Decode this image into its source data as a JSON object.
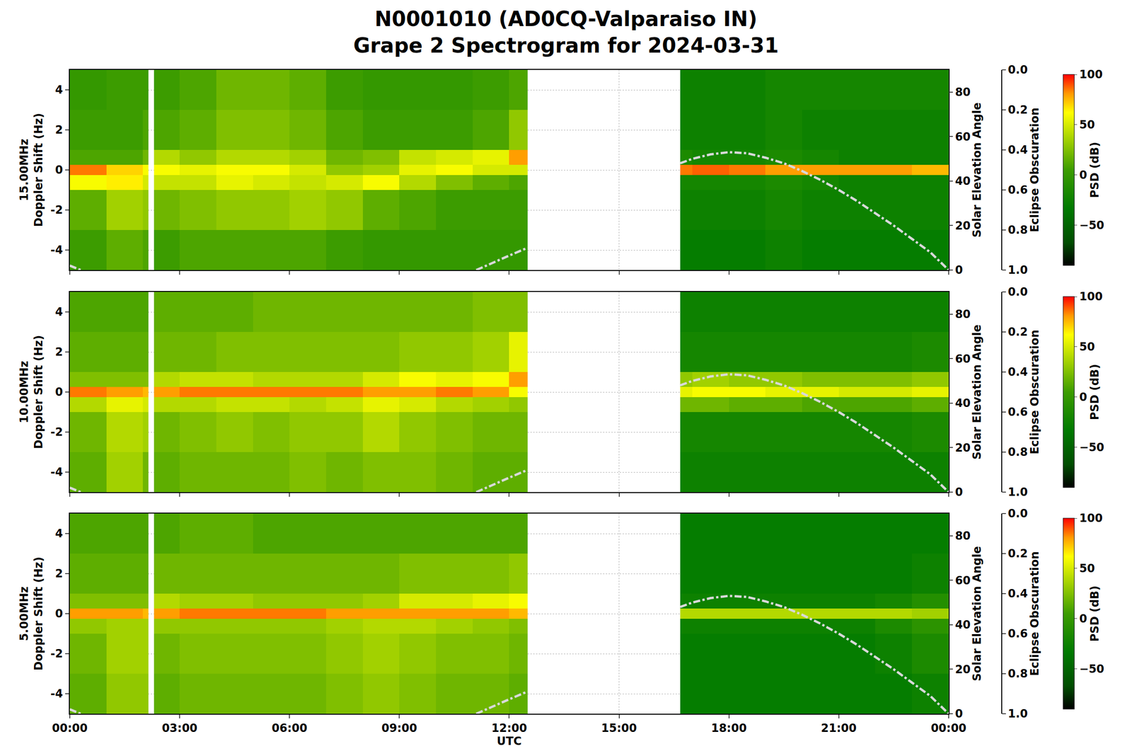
{
  "title": [
    "N0001010 (AD0CQ-Valparaiso IN)",
    "Grape 2 Spectrogram for 2024-03-31"
  ],
  "chart_data": [
    {
      "type": "heatmap",
      "ylabel": [
        "15.00MHz",
        "Doppler Shift (Hz)"
      ],
      "y2label": "Solar Elevation Angle",
      "y3label": "Eclipse Obscuration",
      "tick_labels": "y",
      "grid": true,
      "xlim": [
        0,
        24
      ],
      "xticks": [
        {
          "value": 0,
          "label": "00:00"
        },
        {
          "value": 3,
          "label": "03:00"
        },
        {
          "value": 6,
          "label": "06:00"
        },
        {
          "value": 9,
          "label": "09:00"
        },
        {
          "value": 12,
          "label": "12:00"
        },
        {
          "value": 15,
          "label": "15:00"
        },
        {
          "value": 18,
          "label": "18:00"
        },
        {
          "value": 21,
          "label": "21:00"
        },
        {
          "value": 24,
          "label": "00:00"
        }
      ],
      "ylim": [
        -5,
        5
      ],
      "yticks": [
        -4,
        -2,
        0,
        2,
        4
      ],
      "y2lim": [
        0,
        90
      ],
      "y2ticks": [
        0,
        20,
        40,
        60,
        80
      ],
      "y3lim": [
        1,
        0
      ],
      "y3ticks": [
        {
          "value": 0,
          "label": "0.0"
        },
        0.2,
        0.4,
        0.6,
        0.8,
        {
          "value": 1,
          "label": "1.0"
        }
      ],
      "x_edges": [
        0,
        1,
        2,
        2.15,
        2.3,
        3,
        4,
        5,
        6,
        7,
        8,
        9,
        10,
        11,
        12,
        12.5,
        16.67,
        17,
        18,
        19,
        20,
        21,
        22,
        23,
        24
      ],
      "y_edges": [
        -5,
        -3,
        -1,
        -0.25,
        0.25,
        1,
        3,
        5
      ],
      "z": [
        [
          5,
          15,
          10,
          null,
          5,
          10,
          10,
          10,
          10,
          5,
          0,
          0,
          0,
          0,
          0,
          null,
          -30,
          -30,
          -30,
          -25,
          -30,
          -30,
          -30,
          -30
        ],
        [
          15,
          35,
          30,
          null,
          20,
          25,
          30,
          30,
          35,
          30,
          15,
          10,
          5,
          5,
          5,
          null,
          -25,
          -25,
          -25,
          -20,
          -25,
          -25,
          -25,
          -25
        ],
        [
          60,
          65,
          50,
          null,
          45,
          45,
          55,
          50,
          45,
          50,
          60,
          40,
          25,
          15,
          10,
          null,
          -20,
          -20,
          -20,
          -15,
          -20,
          -25,
          -25,
          -25
        ],
        [
          85,
          70,
          60,
          null,
          60,
          55,
          60,
          60,
          50,
          30,
          35,
          55,
          60,
          50,
          50,
          null,
          85,
          88,
          85,
          80,
          80,
          80,
          80,
          75
        ],
        [
          10,
          10,
          20,
          null,
          40,
          30,
          40,
          40,
          35,
          20,
          25,
          45,
          50,
          55,
          80,
          null,
          -15,
          -20,
          -20,
          -15,
          -20,
          -25,
          -25,
          -25
        ],
        [
          5,
          5,
          10,
          null,
          10,
          15,
          25,
          25,
          20,
          10,
          5,
          5,
          5,
          10,
          30,
          null,
          -25,
          -25,
          -25,
          -20,
          -25,
          -25,
          -25,
          -25
        ],
        [
          0,
          5,
          5,
          null,
          5,
          10,
          20,
          20,
          15,
          5,
          0,
          0,
          0,
          5,
          10,
          null,
          -25,
          -25,
          -25,
          -20,
          -20,
          -20,
          -20,
          -20
        ]
      ],
      "colorbar": {
        "title": "PSD (dB)",
        "range": [
          -90,
          100
        ],
        "ticks": [
          -50,
          0,
          50,
          100
        ]
      },
      "elevation": {
        "color": "#d9d9d9",
        "line_style": "dashdot",
        "x": [
          0,
          0.3,
          5,
          11.1,
          11.5,
          12,
          12.5,
          14.5,
          16.67,
          17,
          17.5,
          18,
          18.5,
          19,
          19.5,
          20,
          20.5,
          21,
          21.5,
          22,
          22.5,
          23,
          23.5,
          24
        ],
        "values": [
          2,
          0,
          null,
          0,
          3,
          6.5,
          10,
          null,
          48,
          50,
          52,
          53,
          52.5,
          50.5,
          48,
          44.5,
          40.5,
          36,
          31,
          25.5,
          20,
          14,
          8,
          0
        ]
      }
    },
    {
      "type": "heatmap",
      "ylabel": [
        "10.00MHz",
        "Doppler Shift (Hz)"
      ],
      "y2label": "Solar Elevation Angle",
      "y3label": "Eclipse Obscuration",
      "tick_labels": "y",
      "grid": true,
      "xlim": [
        0,
        24
      ],
      "xticks": [
        {
          "value": 0,
          "label": "00:00"
        },
        {
          "value": 3,
          "label": "03:00"
        },
        {
          "value": 6,
          "label": "06:00"
        },
        {
          "value": 9,
          "label": "09:00"
        },
        {
          "value": 12,
          "label": "12:00"
        },
        {
          "value": 15,
          "label": "15:00"
        },
        {
          "value": 18,
          "label": "18:00"
        },
        {
          "value": 21,
          "label": "21:00"
        },
        {
          "value": 24,
          "label": "00:00"
        }
      ],
      "ylim": [
        -5,
        5
      ],
      "yticks": [
        -4,
        -2,
        0,
        2,
        4
      ],
      "y2lim": [
        0,
        90
      ],
      "y2ticks": [
        0,
        20,
        40,
        60,
        80
      ],
      "y3lim": [
        1,
        0
      ],
      "y3ticks": [
        {
          "value": 0,
          "label": "0.0"
        },
        0.2,
        0.4,
        0.6,
        0.8,
        {
          "value": 1,
          "label": "1.0"
        }
      ],
      "x_edges": [
        0,
        1,
        2,
        2.15,
        2.3,
        3,
        4,
        5,
        6,
        7,
        8,
        9,
        10,
        11,
        12,
        12.5,
        16.67,
        17,
        18,
        19,
        20,
        21,
        22,
        23,
        24
      ],
      "y_edges": [
        -5,
        -3,
        -1,
        -0.25,
        0.25,
        1,
        3,
        5
      ],
      "z": [
        [
          15,
          35,
          20,
          null,
          15,
          20,
          20,
          20,
          25,
          20,
          25,
          25,
          20,
          15,
          15,
          null,
          -25,
          -25,
          -25,
          -25,
          -25,
          -25,
          -25,
          -25
        ],
        [
          20,
          40,
          35,
          null,
          20,
          25,
          30,
          25,
          30,
          30,
          40,
          30,
          25,
          20,
          20,
          null,
          -20,
          -20,
          -20,
          -20,
          -20,
          -20,
          -20,
          -15
        ],
        [
          40,
          55,
          50,
          null,
          40,
          40,
          45,
          45,
          40,
          45,
          55,
          50,
          40,
          35,
          30,
          null,
          20,
          20,
          15,
          15,
          10,
          10,
          10,
          15
        ],
        [
          85,
          80,
          75,
          null,
          80,
          85,
          85,
          85,
          85,
          85,
          80,
          80,
          85,
          80,
          60,
          null,
          55,
          60,
          60,
          55,
          55,
          50,
          50,
          55
        ],
        [
          25,
          25,
          25,
          null,
          40,
          45,
          45,
          40,
          40,
          40,
          50,
          60,
          55,
          60,
          80,
          null,
          30,
          35,
          30,
          30,
          25,
          25,
          25,
          30
        ],
        [
          15,
          15,
          15,
          null,
          20,
          20,
          25,
          25,
          25,
          25,
          25,
          30,
          30,
          35,
          55,
          null,
          -20,
          -20,
          -20,
          -20,
          -20,
          -20,
          -20,
          -15
        ],
        [
          10,
          10,
          10,
          null,
          15,
          15,
          15,
          20,
          20,
          20,
          20,
          20,
          20,
          25,
          25,
          null,
          -25,
          -25,
          -25,
          -25,
          -25,
          -25,
          -25,
          -25
        ]
      ],
      "colorbar": {
        "title": "PSD (dB)",
        "range": [
          -90,
          100
        ],
        "ticks": [
          -50,
          0,
          50,
          100
        ]
      },
      "elevation": {
        "color": "#d9d9d9",
        "line_style": "dashdot",
        "x": [
          0,
          0.3,
          5,
          11.1,
          11.5,
          12,
          12.5,
          14.5,
          16.67,
          17,
          17.5,
          18,
          18.5,
          19,
          19.5,
          20,
          20.5,
          21,
          21.5,
          22,
          22.5,
          23,
          23.5,
          24
        ],
        "values": [
          2,
          0,
          null,
          0,
          3,
          6.5,
          10,
          null,
          48,
          50,
          52,
          53,
          52.5,
          50.5,
          48,
          44.5,
          40.5,
          36,
          31,
          25.5,
          20,
          14,
          8,
          0
        ]
      }
    },
    {
      "type": "heatmap",
      "ylabel": [
        "5.00MHz",
        "Doppler Shift (Hz)"
      ],
      "y2label": "Solar Elevation Angle",
      "y3label": "Eclipse Obscuration",
      "xlabel": "UTC",
      "grid": true,
      "xlim": [
        0,
        24
      ],
      "xticks": [
        {
          "value": 0,
          "label": "00:00"
        },
        {
          "value": 3,
          "label": "03:00"
        },
        {
          "value": 6,
          "label": "06:00"
        },
        {
          "value": 9,
          "label": "09:00"
        },
        {
          "value": 12,
          "label": "12:00"
        },
        {
          "value": 15,
          "label": "15:00"
        },
        {
          "value": 18,
          "label": "18:00"
        },
        {
          "value": 21,
          "label": "21:00"
        },
        {
          "value": 24,
          "label": "00:00"
        }
      ],
      "ylim": [
        -5,
        5
      ],
      "yticks": [
        -4,
        -2,
        0,
        2,
        4
      ],
      "y2lim": [
        0,
        90
      ],
      "y2ticks": [
        0,
        20,
        40,
        60,
        80
      ],
      "y3lim": [
        1,
        0
      ],
      "y3ticks": [
        {
          "value": 0,
          "label": "0.0"
        },
        0.2,
        0.4,
        0.6,
        0.8,
        {
          "value": 1,
          "label": "1.0"
        }
      ],
      "x_edges": [
        0,
        1,
        2,
        2.15,
        2.3,
        3,
        4,
        5,
        6,
        7,
        8,
        9,
        10,
        11,
        12,
        12.5,
        16.67,
        17,
        18,
        19,
        20,
        21,
        22,
        23,
        24
      ],
      "y_edges": [
        -5,
        -3,
        -1,
        -0.25,
        0.25,
        1,
        3,
        5
      ],
      "z": [
        [
          15,
          30,
          30,
          null,
          15,
          20,
          20,
          20,
          20,
          25,
          30,
          25,
          20,
          20,
          15,
          null,
          -30,
          -30,
          -30,
          -30,
          -30,
          -30,
          -30,
          -25
        ],
        [
          20,
          35,
          35,
          null,
          20,
          25,
          25,
          25,
          25,
          30,
          35,
          30,
          25,
          25,
          20,
          null,
          -30,
          -30,
          -30,
          -30,
          -30,
          -30,
          -25,
          -15
        ],
        [
          30,
          35,
          35,
          null,
          30,
          30,
          30,
          30,
          30,
          35,
          40,
          40,
          35,
          30,
          25,
          null,
          -25,
          -25,
          -25,
          -25,
          -25,
          -25,
          -15,
          -5
        ],
        [
          80,
          80,
          75,
          null,
          80,
          85,
          85,
          85,
          85,
          80,
          80,
          80,
          80,
          80,
          75,
          null,
          40,
          40,
          40,
          40,
          40,
          40,
          40,
          35
        ],
        [
          25,
          25,
          25,
          null,
          40,
          35,
          35,
          30,
          30,
          30,
          35,
          50,
          50,
          55,
          60,
          null,
          -25,
          -25,
          -25,
          -25,
          -25,
          -25,
          -20,
          -10
        ],
        [
          15,
          15,
          15,
          null,
          20,
          20,
          20,
          20,
          20,
          20,
          20,
          25,
          25,
          25,
          30,
          null,
          -30,
          -30,
          -30,
          -30,
          -30,
          -30,
          -30,
          -25
        ],
        [
          10,
          10,
          10,
          null,
          10,
          15,
          15,
          10,
          10,
          10,
          10,
          10,
          10,
          10,
          10,
          null,
          -30,
          -30,
          -30,
          -30,
          -30,
          -30,
          -30,
          -30
        ]
      ],
      "colorbar": {
        "title": "PSD (dB)",
        "range": [
          -90,
          100
        ],
        "ticks": [
          -50,
          0,
          50,
          100
        ]
      },
      "elevation": {
        "color": "#d9d9d9",
        "line_style": "dashdot",
        "x": [
          0,
          0.3,
          5,
          11.1,
          11.5,
          12,
          12.5,
          14.5,
          16.67,
          17,
          17.5,
          18,
          18.5,
          19,
          19.5,
          20,
          20.5,
          21,
          21.5,
          22,
          22.5,
          23,
          23.5,
          24
        ],
        "values": [
          2,
          0,
          null,
          0,
          3,
          6.5,
          10,
          null,
          48,
          50,
          52,
          53,
          52.5,
          50.5,
          48,
          44.5,
          40.5,
          36,
          31,
          25.5,
          20,
          14,
          8,
          0
        ]
      }
    }
  ]
}
